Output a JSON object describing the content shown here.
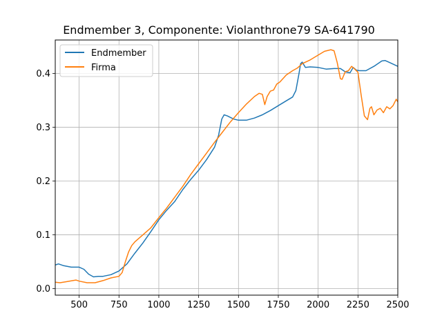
{
  "chart_data": {
    "type": "line",
    "title": "Endmember 3, Componente: Violanthrone79 SA-641790",
    "xlabel": "",
    "ylabel": "",
    "xlim": [
      350,
      2500
    ],
    "ylim": [
      -0.012,
      0.462
    ],
    "grid": true,
    "legend_position": "upper-left",
    "x_ticks": [
      500,
      750,
      1000,
      1250,
      1500,
      1750,
      2000,
      2250,
      2500
    ],
    "y_ticks": [
      0.0,
      0.1,
      0.2,
      0.3,
      0.4
    ],
    "x_tick_labels": [
      "500",
      "750",
      "1000",
      "1250",
      "1500",
      "1750",
      "2000",
      "2250",
      "2500"
    ],
    "y_tick_labels": [
      "0.0",
      "0.1",
      "0.2",
      "0.3",
      "0.4"
    ],
    "series": [
      {
        "name": "Endmember",
        "color": "#1f77b4",
        "points": [
          [
            350,
            0.044
          ],
          [
            370,
            0.046
          ],
          [
            400,
            0.043
          ],
          [
            450,
            0.04
          ],
          [
            500,
            0.04
          ],
          [
            530,
            0.036
          ],
          [
            560,
            0.027
          ],
          [
            590,
            0.022
          ],
          [
            620,
            0.023
          ],
          [
            650,
            0.023
          ],
          [
            700,
            0.026
          ],
          [
            750,
            0.033
          ],
          [
            800,
            0.046
          ],
          [
            850,
            0.066
          ],
          [
            900,
            0.085
          ],
          [
            950,
            0.106
          ],
          [
            1000,
            0.128
          ],
          [
            1050,
            0.146
          ],
          [
            1100,
            0.162
          ],
          [
            1150,
            0.184
          ],
          [
            1200,
            0.203
          ],
          [
            1250,
            0.22
          ],
          [
            1300,
            0.24
          ],
          [
            1350,
            0.263
          ],
          [
            1375,
            0.285
          ],
          [
            1395,
            0.315
          ],
          [
            1410,
            0.323
          ],
          [
            1430,
            0.321
          ],
          [
            1470,
            0.315
          ],
          [
            1500,
            0.313
          ],
          [
            1550,
            0.313
          ],
          [
            1600,
            0.317
          ],
          [
            1650,
            0.323
          ],
          [
            1700,
            0.331
          ],
          [
            1750,
            0.34
          ],
          [
            1800,
            0.349
          ],
          [
            1840,
            0.356
          ],
          [
            1860,
            0.368
          ],
          [
            1880,
            0.4
          ],
          [
            1890,
            0.418
          ],
          [
            1900,
            0.421
          ],
          [
            1920,
            0.411
          ],
          [
            1950,
            0.412
          ],
          [
            2000,
            0.411
          ],
          [
            2050,
            0.408
          ],
          [
            2100,
            0.409
          ],
          [
            2140,
            0.409
          ],
          [
            2170,
            0.403
          ],
          [
            2200,
            0.401
          ],
          [
            2220,
            0.411
          ],
          [
            2240,
            0.406
          ],
          [
            2260,
            0.405
          ],
          [
            2300,
            0.405
          ],
          [
            2350,
            0.413
          ],
          [
            2400,
            0.423
          ],
          [
            2420,
            0.424
          ],
          [
            2450,
            0.42
          ],
          [
            2500,
            0.413
          ]
        ]
      },
      {
        "name": "Firma",
        "color": "#ff7f0e",
        "points": [
          [
            350,
            0.012
          ],
          [
            380,
            0.011
          ],
          [
            420,
            0.013
          ],
          [
            460,
            0.015
          ],
          [
            480,
            0.016
          ],
          [
            500,
            0.014
          ],
          [
            550,
            0.011
          ],
          [
            600,
            0.011
          ],
          [
            650,
            0.015
          ],
          [
            700,
            0.02
          ],
          [
            750,
            0.023
          ],
          [
            770,
            0.03
          ],
          [
            790,
            0.05
          ],
          [
            810,
            0.068
          ],
          [
            830,
            0.08
          ],
          [
            850,
            0.087
          ],
          [
            900,
            0.1
          ],
          [
            950,
            0.113
          ],
          [
            1000,
            0.132
          ],
          [
            1050,
            0.15
          ],
          [
            1100,
            0.17
          ],
          [
            1150,
            0.19
          ],
          [
            1200,
            0.212
          ],
          [
            1250,
            0.232
          ],
          [
            1300,
            0.252
          ],
          [
            1350,
            0.272
          ],
          [
            1400,
            0.291
          ],
          [
            1450,
            0.31
          ],
          [
            1500,
            0.327
          ],
          [
            1550,
            0.343
          ],
          [
            1600,
            0.357
          ],
          [
            1630,
            0.363
          ],
          [
            1650,
            0.361
          ],
          [
            1665,
            0.342
          ],
          [
            1680,
            0.357
          ],
          [
            1700,
            0.367
          ],
          [
            1720,
            0.369
          ],
          [
            1740,
            0.38
          ],
          [
            1760,
            0.384
          ],
          [
            1800,
            0.397
          ],
          [
            1840,
            0.405
          ],
          [
            1870,
            0.41
          ],
          [
            1900,
            0.418
          ],
          [
            1950,
            0.425
          ],
          [
            2000,
            0.434
          ],
          [
            2040,
            0.441
          ],
          [
            2080,
            0.444
          ],
          [
            2100,
            0.442
          ],
          [
            2120,
            0.42
          ],
          [
            2140,
            0.39
          ],
          [
            2150,
            0.389
          ],
          [
            2170,
            0.403
          ],
          [
            2190,
            0.405
          ],
          [
            2210,
            0.413
          ],
          [
            2230,
            0.408
          ],
          [
            2250,
            0.402
          ],
          [
            2270,
            0.36
          ],
          [
            2290,
            0.321
          ],
          [
            2310,
            0.314
          ],
          [
            2325,
            0.335
          ],
          [
            2335,
            0.338
          ],
          [
            2350,
            0.323
          ],
          [
            2370,
            0.332
          ],
          [
            2390,
            0.335
          ],
          [
            2410,
            0.327
          ],
          [
            2430,
            0.338
          ],
          [
            2450,
            0.334
          ],
          [
            2470,
            0.34
          ],
          [
            2490,
            0.352
          ],
          [
            2500,
            0.347
          ]
        ]
      }
    ]
  }
}
